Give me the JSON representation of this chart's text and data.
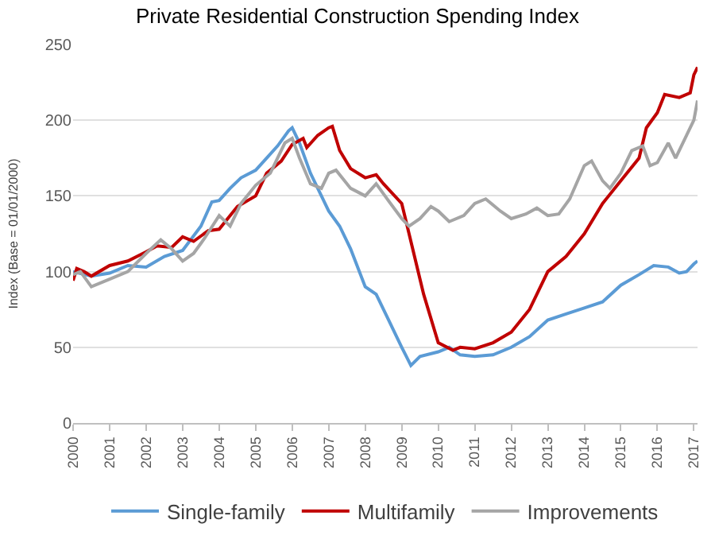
{
  "chart_data": {
    "type": "line",
    "title": "Private Residential Construction Spending Index",
    "ylabel": "Index (Base = 01/01/2000)",
    "xlim": [
      2000,
      2017.1
    ],
    "xticks": [
      2000,
      2001,
      2002,
      2003,
      2004,
      2005,
      2006,
      2007,
      2008,
      2009,
      2010,
      2011,
      2012,
      2013,
      2014,
      2015,
      2016,
      2017
    ],
    "ylim": [
      0,
      250
    ],
    "yticks": [
      0,
      50,
      100,
      150,
      200,
      250
    ],
    "grid": "y",
    "legend": "bottom",
    "marker": "none",
    "line_style": "solid",
    "series": [
      {
        "name": "Single-family",
        "color": "#5b9bd5",
        "x": [
          2000,
          2000.5,
          2001,
          2001.5,
          2002,
          2002.5,
          2003,
          2003.5,
          2003.8,
          2004,
          2004.3,
          2004.6,
          2005,
          2005.3,
          2005.6,
          2005.9,
          2006,
          2006.2,
          2006.5,
          2006.8,
          2007,
          2007.3,
          2007.6,
          2008,
          2008.3,
          2008.6,
          2009,
          2009.25,
          2009.5,
          2010,
          2010.3,
          2010.6,
          2011,
          2011.5,
          2012,
          2012.5,
          2013,
          2013.5,
          2014,
          2014.5,
          2015,
          2015.5,
          2015.9,
          2016.3,
          2016.6,
          2016.8,
          2017,
          2017.1
        ],
        "values": [
          100,
          97,
          99,
          104,
          103,
          110,
          114,
          130,
          146,
          147,
          155,
          162,
          167,
          175,
          183,
          193,
          195,
          185,
          165,
          150,
          140,
          130,
          115,
          90,
          85,
          70,
          50,
          38,
          44,
          47,
          50,
          45,
          44,
          45,
          50,
          57,
          68,
          72,
          76,
          80,
          91,
          98,
          104,
          103,
          99,
          100,
          105,
          107
        ]
      },
      {
        "name": "Multifamily",
        "color": "#c00000",
        "x": [
          2000,
          2000.1,
          2000.3,
          2000.5,
          2001,
          2001.5,
          2002,
          2002.3,
          2002.7,
          2003,
          2003.3,
          2003.7,
          2004,
          2004.5,
          2005,
          2005.3,
          2005.7,
          2006,
          2006.3,
          2006.4,
          2006.7,
          2007,
          2007.1,
          2007.3,
          2007.6,
          2008,
          2008.3,
          2008.5,
          2009,
          2009.3,
          2009.6,
          2010,
          2010.4,
          2010.6,
          2011,
          2011.5,
          2012,
          2012.5,
          2013,
          2013.5,
          2014,
          2014.5,
          2015,
          2015.5,
          2015.7,
          2016,
          2016.2,
          2016.6,
          2016.9,
          2017,
          2017.1
        ],
        "values": [
          94,
          102,
          100,
          97,
          104,
          107,
          113,
          117,
          116,
          123,
          120,
          127,
          128,
          143,
          150,
          165,
          173,
          184,
          188,
          182,
          190,
          195,
          196,
          180,
          168,
          162,
          164,
          158,
          145,
          115,
          85,
          53,
          48,
          50,
          49,
          53,
          60,
          75,
          100,
          110,
          125,
          145,
          160,
          175,
          195,
          205,
          217,
          215,
          218,
          230,
          235
        ]
      },
      {
        "name": "Improvements",
        "color": "#a5a5a5",
        "x": [
          2000,
          2000.2,
          2000.5,
          2001,
          2001.5,
          2002,
          2002.4,
          2002.7,
          2003,
          2003.3,
          2003.6,
          2004,
          2004.3,
          2004.6,
          2005,
          2005.4,
          2005.8,
          2006,
          2006.2,
          2006.5,
          2006.8,
          2007,
          2007.2,
          2007.6,
          2008,
          2008.3,
          2008.6,
          2009,
          2009.2,
          2009.5,
          2009.8,
          2010,
          2010.3,
          2010.7,
          2011,
          2011.3,
          2011.7,
          2012,
          2012.4,
          2012.7,
          2013,
          2013.3,
          2013.6,
          2014,
          2014.2,
          2014.5,
          2014.7,
          2015,
          2015.3,
          2015.6,
          2015.8,
          2016,
          2016.3,
          2016.5,
          2016.8,
          2017,
          2017.1
        ],
        "values": [
          98,
          100,
          90,
          95,
          100,
          112,
          121,
          115,
          107,
          112,
          122,
          137,
          130,
          145,
          157,
          165,
          185,
          188,
          175,
          158,
          155,
          165,
          167,
          155,
          150,
          158,
          148,
          135,
          130,
          135,
          143,
          140,
          133,
          137,
          145,
          148,
          140,
          135,
          138,
          142,
          137,
          138,
          148,
          170,
          173,
          160,
          155,
          165,
          180,
          183,
          170,
          172,
          185,
          175,
          190,
          200,
          213
        ]
      }
    ]
  }
}
